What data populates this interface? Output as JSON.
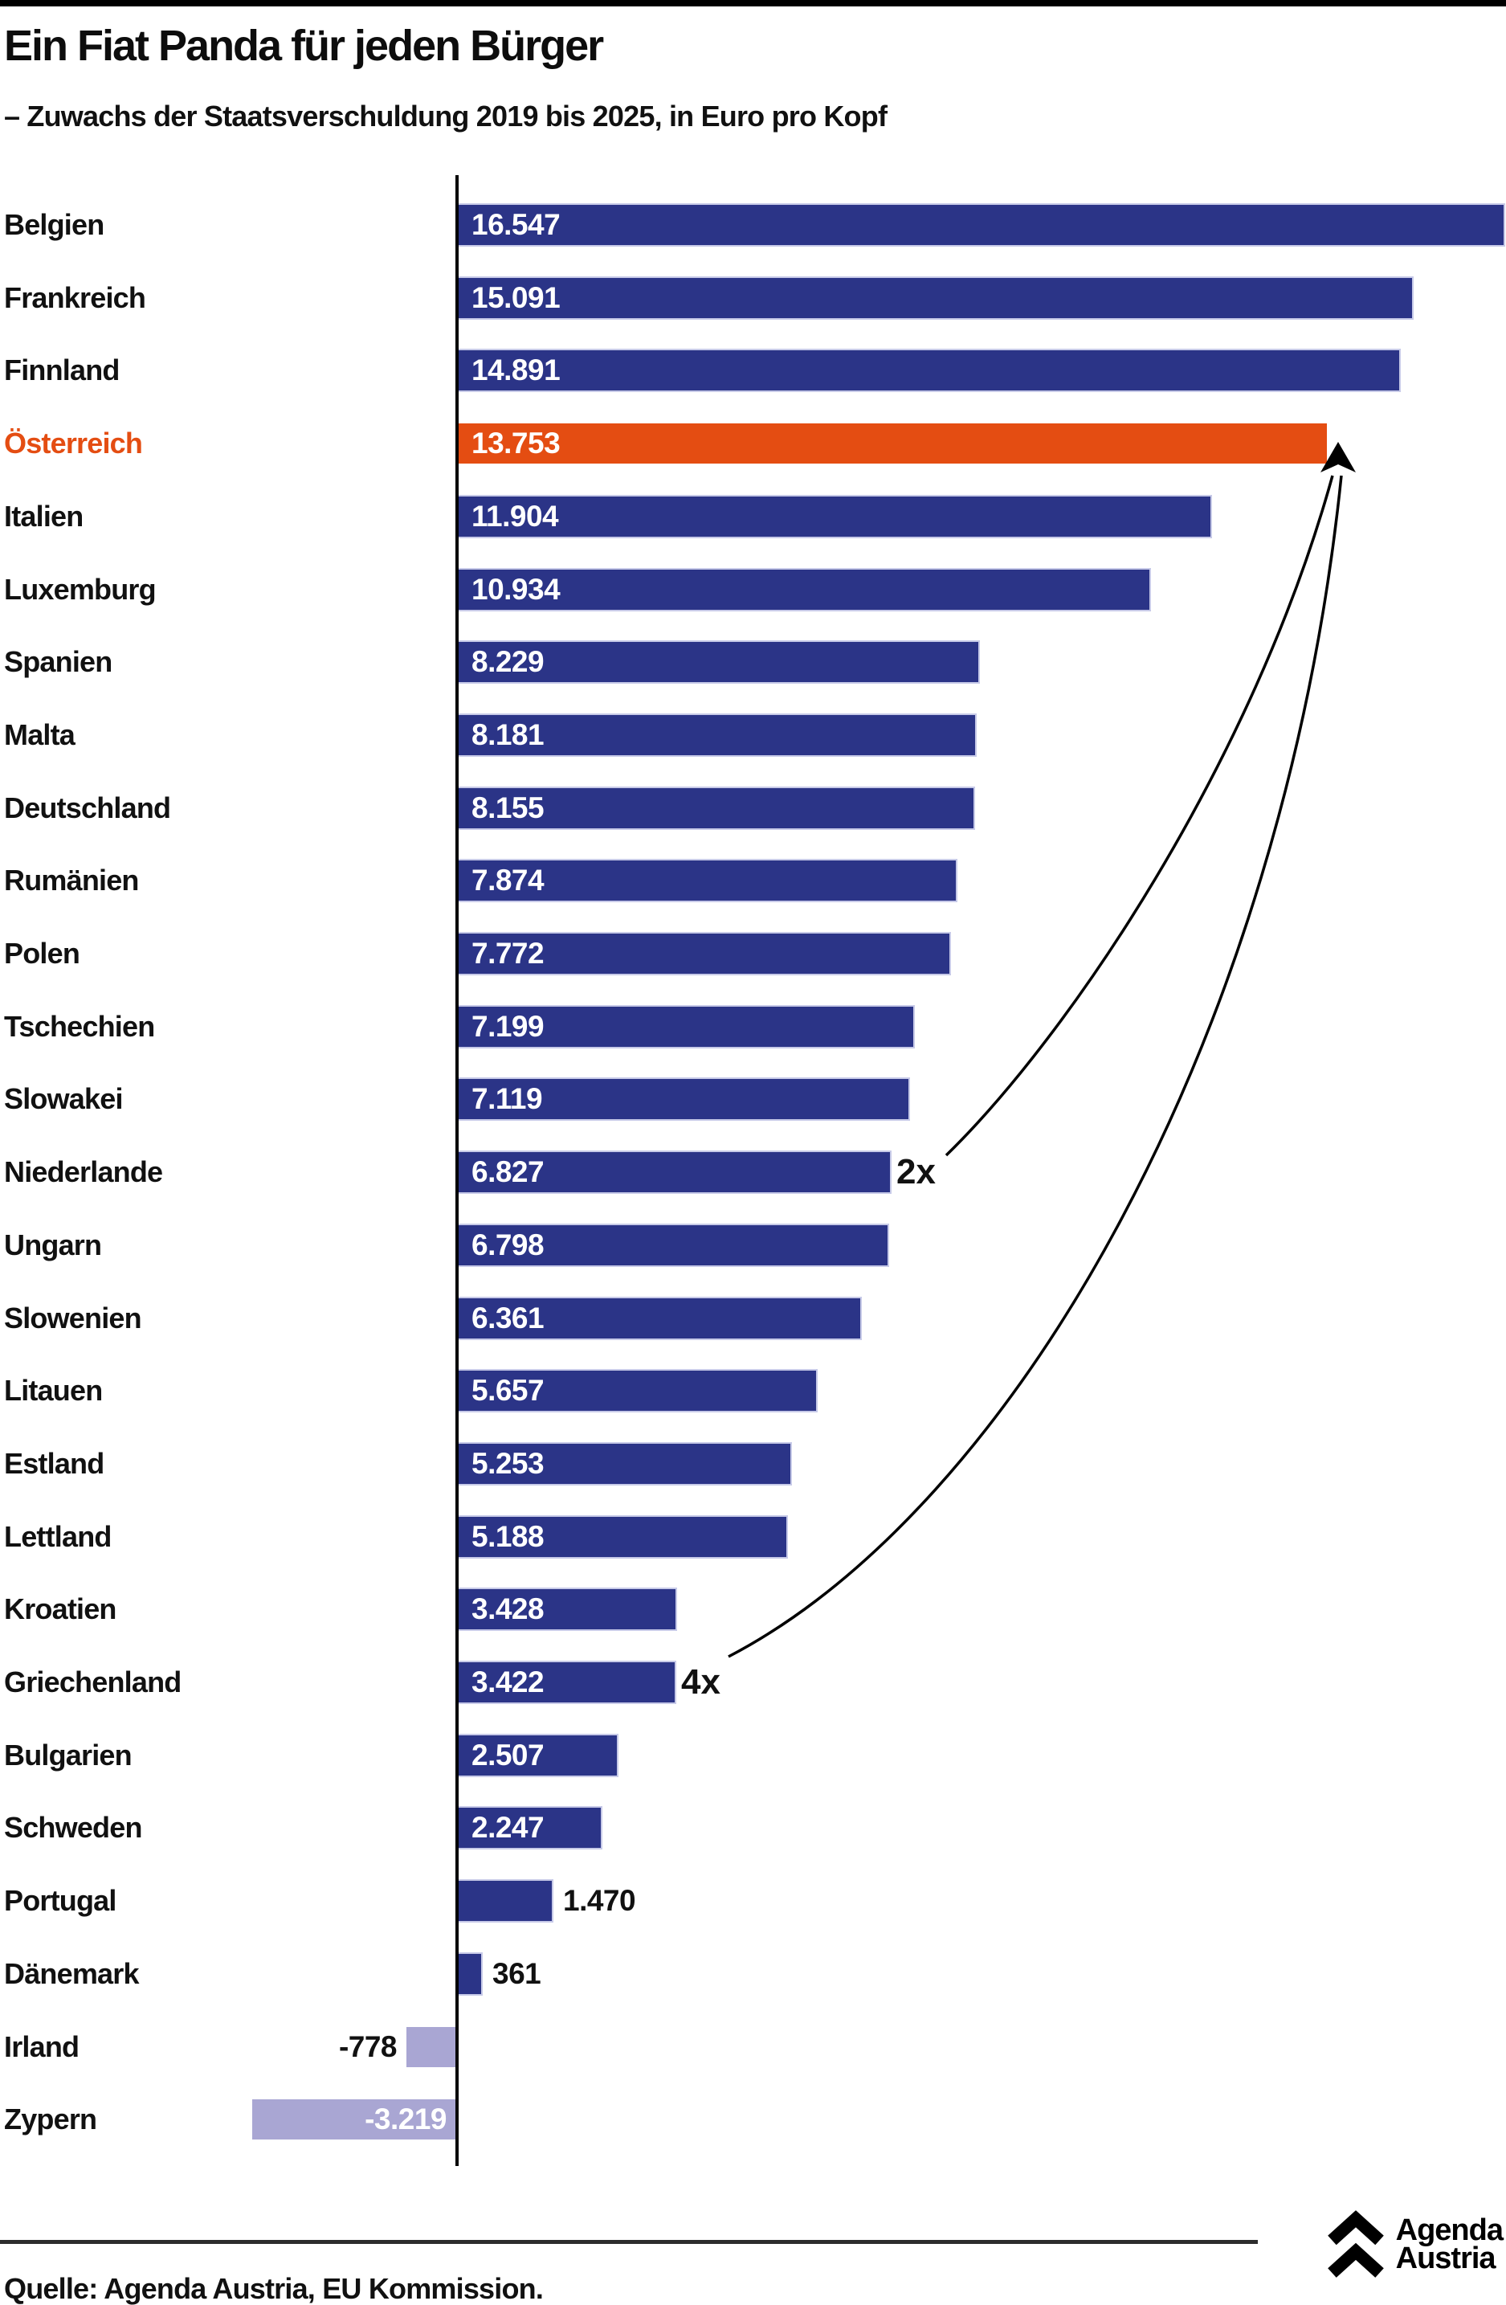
{
  "header": {
    "title": "Ein Fiat Panda für jeden Bürger",
    "subtitle": "– Zuwachs der Staatsverschuldung 2019 bis 2025, in Euro pro Kopf"
  },
  "footer": {
    "source": "Quelle: Agenda Austria, EU Kommission.",
    "logo": {
      "icon": "double-chevron-up-icon",
      "line1": "Agenda",
      "line2": "Austria"
    }
  },
  "colors": {
    "bar_blue": "#2b3487",
    "bar_highlight_orange": "#e44d12",
    "bar_negative_light": "#a9a6d3",
    "bar_edge_light": "#c7cae8",
    "axis": "#000000",
    "text": "#111111",
    "highlight_label": "#e44d12"
  },
  "chart_data": {
    "type": "bar",
    "orientation": "horizontal",
    "title": "Ein Fiat Panda für jeden Bürger",
    "subtitle": "– Zuwachs der Staatsverschuldung 2019 bis 2025, in Euro pro Kopf",
    "unit": "Euro pro Kopf",
    "xlim": [
      -3219,
      16547
    ],
    "grid": false,
    "highlight_category": "Österreich",
    "categories": [
      "Belgien",
      "Frankreich",
      "Finnland",
      "Österreich",
      "Italien",
      "Luxemburg",
      "Spanien",
      "Malta",
      "Deutschland",
      "Rumänien",
      "Polen",
      "Tschechien",
      "Slowakei",
      "Niederlande",
      "Ungarn",
      "Slowenien",
      "Litauen",
      "Estland",
      "Lettland",
      "Kroatien",
      "Griechenland",
      "Bulgarien",
      "Schweden",
      "Portugal",
      "Dänemark",
      "Irland",
      "Zypern"
    ],
    "values": [
      16547,
      15091,
      14891,
      13753,
      11904,
      10934,
      8229,
      8181,
      8155,
      7874,
      7772,
      7199,
      7119,
      6827,
      6798,
      6361,
      5657,
      5253,
      5188,
      3428,
      3422,
      2507,
      2247,
      1470,
      361,
      -778,
      -3219
    ],
    "annotations": [
      {
        "text": "2x",
        "at": "Niederlande",
        "points_to": "Österreich"
      },
      {
        "text": "4x",
        "at": "Griechenland",
        "points_to": "Österreich"
      }
    ],
    "rows": [
      {
        "label": "Belgien",
        "value": 16547,
        "text": "16.547",
        "style": "blue",
        "value_pos": "inside",
        "annotation": null
      },
      {
        "label": "Frankreich",
        "value": 15091,
        "text": "15.091",
        "style": "blue",
        "value_pos": "inside",
        "annotation": null
      },
      {
        "label": "Finnland",
        "value": 14891,
        "text": "14.891",
        "style": "blue",
        "value_pos": "inside",
        "annotation": null
      },
      {
        "label": "Österreich",
        "value": 13753,
        "text": "13.753",
        "style": "orange",
        "value_pos": "inside",
        "annotation": null
      },
      {
        "label": "Italien",
        "value": 11904,
        "text": "11.904",
        "style": "blue",
        "value_pos": "inside",
        "annotation": null
      },
      {
        "label": "Luxemburg",
        "value": 10934,
        "text": "10.934",
        "style": "blue",
        "value_pos": "inside",
        "annotation": null
      },
      {
        "label": "Spanien",
        "value": 8229,
        "text": "8.229",
        "style": "blue",
        "value_pos": "inside",
        "annotation": null
      },
      {
        "label": "Malta",
        "value": 8181,
        "text": "8.181",
        "style": "blue",
        "value_pos": "inside",
        "annotation": null
      },
      {
        "label": "Deutschland",
        "value": 8155,
        "text": "8.155",
        "style": "blue",
        "value_pos": "inside",
        "annotation": null
      },
      {
        "label": "Rumänien",
        "value": 7874,
        "text": "7.874",
        "style": "blue",
        "value_pos": "inside",
        "annotation": null
      },
      {
        "label": "Polen",
        "value": 7772,
        "text": "7.772",
        "style": "blue",
        "value_pos": "inside",
        "annotation": null
      },
      {
        "label": "Tschechien",
        "value": 7199,
        "text": "7.199",
        "style": "blue",
        "value_pos": "inside",
        "annotation": null
      },
      {
        "label": "Slowakei",
        "value": 7119,
        "text": "7.119",
        "style": "blue",
        "value_pos": "inside",
        "annotation": null
      },
      {
        "label": "Niederlande",
        "value": 6827,
        "text": "6.827",
        "style": "blue",
        "value_pos": "inside",
        "annotation": "2x"
      },
      {
        "label": "Ungarn",
        "value": 6798,
        "text": "6.798",
        "style": "blue",
        "value_pos": "inside",
        "annotation": null
      },
      {
        "label": "Slowenien",
        "value": 6361,
        "text": "6.361",
        "style": "blue",
        "value_pos": "inside",
        "annotation": null
      },
      {
        "label": "Litauen",
        "value": 5657,
        "text": "5.657",
        "style": "blue",
        "value_pos": "inside",
        "annotation": null
      },
      {
        "label": "Estland",
        "value": 5253,
        "text": "5.253",
        "style": "blue",
        "value_pos": "inside",
        "annotation": null
      },
      {
        "label": "Lettland",
        "value": 5188,
        "text": "5.188",
        "style": "blue",
        "value_pos": "inside",
        "annotation": null
      },
      {
        "label": "Kroatien",
        "value": 3428,
        "text": "3.428",
        "style": "blue",
        "value_pos": "inside",
        "annotation": null
      },
      {
        "label": "Griechenland",
        "value": 3422,
        "text": "3.422",
        "style": "blue",
        "value_pos": "inside",
        "annotation": "4x"
      },
      {
        "label": "Bulgarien",
        "value": 2507,
        "text": "2.507",
        "style": "blue",
        "value_pos": "inside",
        "annotation": null
      },
      {
        "label": "Schweden",
        "value": 2247,
        "text": "2.247",
        "style": "blue",
        "value_pos": "inside",
        "annotation": null
      },
      {
        "label": "Portugal",
        "value": 1470,
        "text": "1.470",
        "style": "blue",
        "value_pos": "outside",
        "annotation": null
      },
      {
        "label": "Dänemark",
        "value": 361,
        "text": "361",
        "style": "blue",
        "value_pos": "outside",
        "annotation": null
      },
      {
        "label": "Irland",
        "value": -778,
        "text": "-778",
        "style": "negative",
        "value_pos": "outside",
        "annotation": null
      },
      {
        "label": "Zypern",
        "value": -3219,
        "text": "-3.219",
        "style": "negative",
        "value_pos": "inside",
        "annotation": null
      }
    ]
  }
}
